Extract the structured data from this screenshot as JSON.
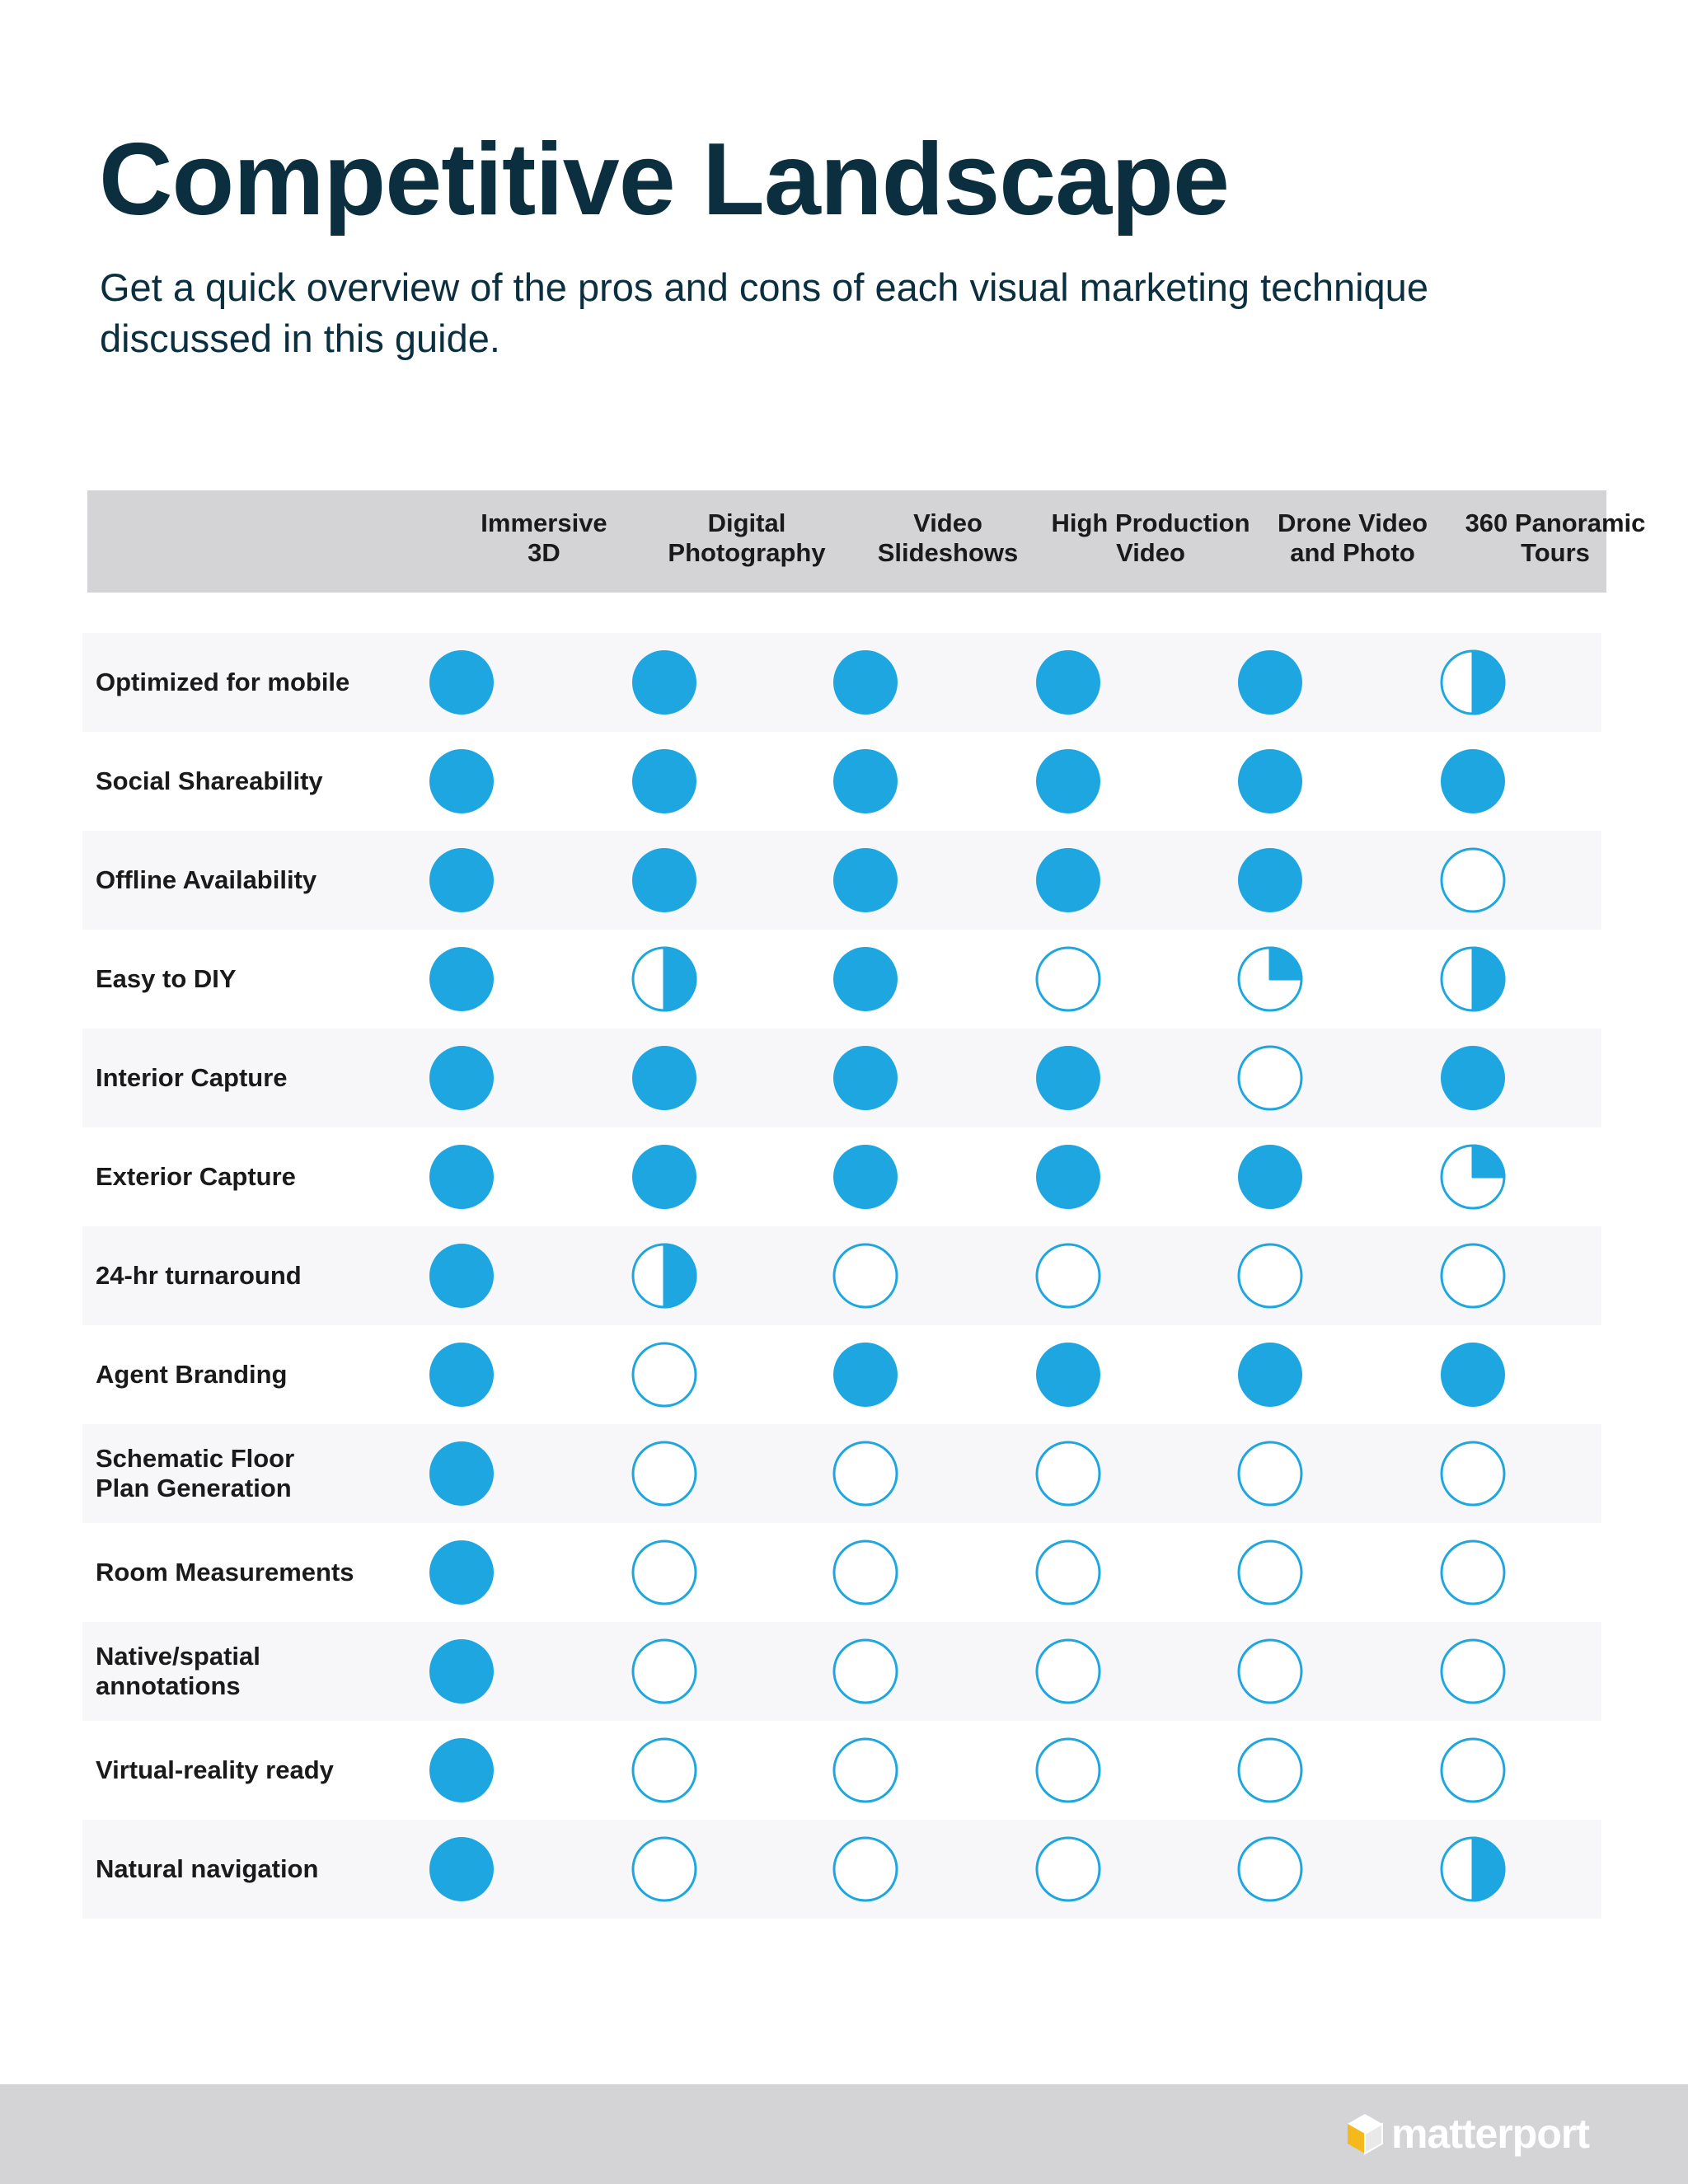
{
  "title": "Competitive Landscape",
  "subtitle": "Get a quick overview of the pros and cons of each visual marketing technique discussed in this guide.",
  "colors": {
    "accent": "#1da6df",
    "heading": "#0b2f3f",
    "header_bar": "#d4d4d6",
    "footer_bar": "#d4d4d6"
  },
  "columns": [
    "Immersive\n3D",
    "Digital\nPhotography",
    "Video\nSlideshows",
    "High Production\nVideo",
    "Drone Video\nand Photo",
    "360 Panoramic\nTours"
  ],
  "rows": [
    {
      "label": "Optimized for mobile",
      "ratings": [
        1,
        1,
        1,
        1,
        1,
        0.5
      ]
    },
    {
      "label": "Social Shareability",
      "ratings": [
        1,
        1,
        1,
        1,
        1,
        1
      ]
    },
    {
      "label": "Offline Availability",
      "ratings": [
        1,
        1,
        1,
        1,
        1,
        0
      ]
    },
    {
      "label": "Easy to DIY",
      "ratings": [
        1,
        0.5,
        1,
        0,
        0.25,
        0.5
      ]
    },
    {
      "label": "Interior Capture",
      "ratings": [
        1,
        1,
        1,
        1,
        0,
        1
      ]
    },
    {
      "label": "Exterior Capture",
      "ratings": [
        1,
        1,
        1,
        1,
        1,
        0.25
      ]
    },
    {
      "label": "24-hr turnaround",
      "ratings": [
        1,
        0.5,
        0,
        0,
        0,
        0
      ]
    },
    {
      "label": "Agent Branding",
      "ratings": [
        1,
        0,
        1,
        1,
        1,
        1
      ]
    },
    {
      "label": "Schematic Floor\nPlan Generation",
      "ratings": [
        1,
        0,
        0,
        0,
        0,
        0
      ]
    },
    {
      "label": "Room Measurements",
      "ratings": [
        1,
        0,
        0,
        0,
        0,
        0
      ]
    },
    {
      "label": "Native/spatial\nannotations",
      "ratings": [
        1,
        0,
        0,
        0,
        0,
        0
      ]
    },
    {
      "label": "Virtual-reality ready",
      "ratings": [
        1,
        0,
        0,
        0,
        0,
        0
      ]
    },
    {
      "label": "Natural navigation",
      "ratings": [
        1,
        0,
        0,
        0,
        0,
        0.5
      ]
    }
  ],
  "footer": {
    "logo_text": "matterport",
    "logo_icon": "matterport-cube-icon"
  }
}
